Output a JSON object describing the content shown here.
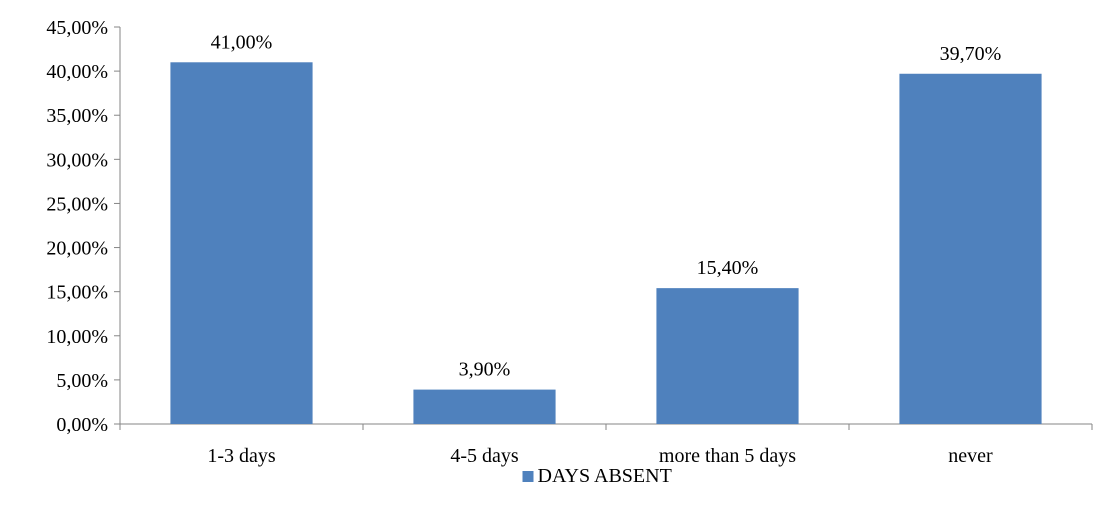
{
  "chart_data": {
    "type": "bar",
    "categories": [
      "1-3 days",
      "4-5 days",
      "more than 5 days",
      "never"
    ],
    "series": [
      {
        "name": "DAYS ABSENT",
        "values": [
          41.0,
          3.9,
          15.4,
          39.7
        ],
        "value_labels": [
          "41,00%",
          "3,90%",
          "15,40%",
          "39,70%"
        ],
        "color": "#4f81bd"
      }
    ],
    "title": "",
    "xlabel": "",
    "ylabel": "",
    "ylim": [
      0,
      45
    ],
    "yticks": [
      0,
      5,
      10,
      15,
      20,
      25,
      30,
      35,
      40,
      45
    ],
    "ytick_labels": [
      "0,00%",
      "5,00%",
      "10,00%",
      "15,00%",
      "20,00%",
      "25,00%",
      "30,00%",
      "35,00%",
      "40,00%",
      "45,00%"
    ],
    "grid": false,
    "legend": {
      "position": "bottom",
      "entries": [
        "DAYS ABSENT"
      ]
    }
  }
}
